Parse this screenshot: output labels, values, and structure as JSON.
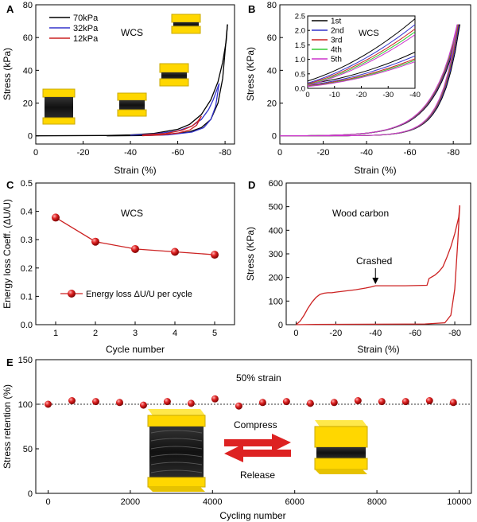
{
  "chart_data": [
    {
      "panel": "A",
      "type": "line",
      "xlabel": "Strain (%)",
      "ylabel": "Stress (kPa)",
      "xlim": [
        0,
        -84
      ],
      "ylim": [
        -5,
        80
      ],
      "xticks": [
        0,
        -20,
        -40,
        -60,
        -80
      ],
      "xtick_labels": [
        "0",
        "-20",
        "-40",
        "-60",
        "-80"
      ],
      "yticks": [
        0,
        20,
        40,
        60,
        80
      ],
      "ytick_labels": [
        "0",
        "20",
        "40",
        "60",
        "80"
      ],
      "annotation": "WCS",
      "legend_position": "top-left",
      "legend": [
        "70kPa",
        "32kPa",
        "12kPa"
      ],
      "series": [
        {
          "name": "70kPa",
          "color": "#000000",
          "load": [
            [
              0,
              0
            ],
            [
              -30,
              0.2
            ],
            [
              -40,
              0.6
            ],
            [
              -50,
              1.5
            ],
            [
              -60,
              4
            ],
            [
              -65,
              7
            ],
            [
              -70,
              13
            ],
            [
              -74,
              22
            ],
            [
              -77,
              33
            ],
            [
              -79,
              45
            ],
            [
              -80.5,
              58
            ],
            [
              -81,
              68
            ]
          ],
          "unload": [
            [
              -81,
              68
            ],
            [
              -79,
              35
            ],
            [
              -77,
              20
            ],
            [
              -74,
              10
            ],
            [
              -70,
              5
            ],
            [
              -65,
              2.5
            ],
            [
              -55,
              0.7
            ],
            [
              -45,
              0.2
            ],
            [
              -30,
              0
            ]
          ]
        },
        {
          "name": "32kPa",
          "color": "#3333cc",
          "load": [
            [
              -40,
              0.4
            ],
            [
              -50,
              1.1
            ],
            [
              -60,
              3
            ],
            [
              -66,
              6
            ],
            [
              -70,
              10
            ],
            [
              -73,
              16
            ],
            [
              -75,
              22
            ],
            [
              -76.5,
              28
            ],
            [
              -77.5,
              32
            ]
          ],
          "unload": [
            [
              -77.5,
              32
            ],
            [
              -76,
              18
            ],
            [
              -74,
              10
            ],
            [
              -71,
              5
            ],
            [
              -66,
              2.3
            ],
            [
              -56,
              0.6
            ],
            [
              -45,
              0.1
            ]
          ]
        },
        {
          "name": "12kPa",
          "color": "#cc2222",
          "load": [
            [
              -45,
              0.5
            ],
            [
              -55,
              1.4
            ],
            [
              -62,
              3.5
            ],
            [
              -66,
              6
            ],
            [
              -68.5,
              9
            ],
            [
              -70,
              12
            ]
          ],
          "unload": [
            [
              -70,
              12
            ],
            [
              -68,
              6.5
            ],
            [
              -65,
              3.5
            ],
            [
              -60,
              1.7
            ],
            [
              -52,
              0.5
            ],
            [
              -45,
              0.1
            ]
          ]
        }
      ]
    },
    {
      "panel": "B",
      "type": "line",
      "xlabel": "Strain (%)",
      "ylabel": "Stress (KPa)",
      "xlim": [
        0,
        -88
      ],
      "ylim": [
        -5,
        80
      ],
      "xticks": [
        0,
        -20,
        -40,
        -60,
        -80
      ],
      "xtick_labels": [
        "0",
        "-20",
        "-40",
        "-60",
        "-80"
      ],
      "yticks": [
        0,
        20,
        40,
        60,
        80
      ],
      "ytick_labels": [
        "0",
        "20",
        "40",
        "60",
        "80"
      ],
      "series_names": [
        "1st",
        "2nd",
        "3rd",
        "4th",
        "5th"
      ],
      "series_colors": [
        "#000000",
        "#3333cc",
        "#cc2222",
        "#33cc33",
        "#cc33cc"
      ],
      "peak_strain": [
        -83,
        -82.6,
        -82.3,
        -82,
        -81.8
      ],
      "inset": {
        "annotation": "WCS",
        "xlim": [
          0,
          -40
        ],
        "ylim": [
          0,
          2.5
        ],
        "xticks": [
          0,
          -10,
          -20,
          -30,
          -40
        ],
        "xtick_labels": [
          "0",
          "-10",
          "-20",
          "-30",
          "-40"
        ],
        "yticks": [
          0.0,
          0.5,
          1.0,
          1.5,
          2.0,
          2.5
        ],
        "ytick_labels": [
          "0.0",
          "0.5",
          "1.0",
          "1.5",
          "2.0",
          "2.5"
        ],
        "legend": [
          "1st",
          "2nd",
          "3rd",
          "4th",
          "5th"
        ],
        "load_end": [
          2.4,
          2.2,
          2.05,
          1.95,
          1.85
        ],
        "unload_end": [
          1.25,
          1.12,
          1.02,
          0.97,
          0.92
        ],
        "start": [
          0.25,
          0.18,
          0.15,
          0.12,
          0.1
        ]
      }
    },
    {
      "panel": "C",
      "type": "line",
      "xlabel": "Cycle number",
      "ylabel": "Energy loss Coeff. (ΔU/U)",
      "xlim": [
        0.5,
        5.5
      ],
      "ylim": [
        0.0,
        0.5
      ],
      "xticks": [
        1,
        2,
        3,
        4,
        5
      ],
      "xtick_labels": [
        "1",
        "2",
        "3",
        "4",
        "5"
      ],
      "yticks": [
        0.0,
        0.1,
        0.2,
        0.3,
        0.4,
        0.5
      ],
      "ytick_labels": [
        "0.0",
        "0.1",
        "0.2",
        "0.3",
        "0.4",
        "0.5"
      ],
      "annotation": "WCS",
      "legend_position": "lower-right",
      "legend": [
        "Energy loss ΔU/U per cycle"
      ],
      "x": [
        1,
        2,
        3,
        4,
        5
      ],
      "values": [
        0.378,
        0.293,
        0.267,
        0.257,
        0.247
      ],
      "color": "#cc2222"
    },
    {
      "panel": "D",
      "type": "line",
      "xlabel": "Strain (%)",
      "ylabel": "Stress (KPa)",
      "xlim": [
        5,
        -88
      ],
      "ylim": [
        0,
        600
      ],
      "xticks": [
        0,
        -20,
        -40,
        -60,
        -80
      ],
      "xtick_labels": [
        "0",
        "-20",
        "-40",
        "-60",
        "-80"
      ],
      "yticks": [
        0,
        100,
        200,
        300,
        400,
        500,
        600
      ],
      "ytick_labels": [
        "0",
        "100",
        "200",
        "300",
        "400",
        "500",
        "600"
      ],
      "annotation": "Wood carbon",
      "arrow_label": "Crashed",
      "arrow_at": [
        -40,
        165
      ],
      "color": "#cc2222",
      "load": [
        [
          0,
          0
        ],
        [
          -2,
          15
        ],
        [
          -4,
          40
        ],
        [
          -6,
          70
        ],
        [
          -8,
          95
        ],
        [
          -10,
          115
        ],
        [
          -12,
          128
        ],
        [
          -14,
          133
        ],
        [
          -16,
          135
        ],
        [
          -18,
          135
        ],
        [
          -20,
          138
        ],
        [
          -25,
          143
        ],
        [
          -30,
          148
        ],
        [
          -35,
          155
        ],
        [
          -38,
          160
        ],
        [
          -40,
          165
        ],
        [
          -45,
          165
        ],
        [
          -55,
          165
        ],
        [
          -66,
          167
        ],
        [
          -67,
          195
        ],
        [
          -70,
          210
        ],
        [
          -72,
          225
        ],
        [
          -74,
          245
        ],
        [
          -76,
          285
        ],
        [
          -78,
          330
        ],
        [
          -80,
          385
        ],
        [
          -82,
          455
        ],
        [
          -82.5,
          505
        ]
      ],
      "unload": [
        [
          -82.5,
          505
        ],
        [
          -81.5,
          350
        ],
        [
          -80,
          150
        ],
        [
          -78,
          40
        ],
        [
          -75,
          8
        ],
        [
          -65,
          3
        ],
        [
          -40,
          2
        ],
        [
          -10,
          1
        ],
        [
          0,
          0
        ]
      ]
    },
    {
      "panel": "E",
      "type": "scatter",
      "xlabel": "Cycling number",
      "ylabel": "Stress retention (%)",
      "xlim": [
        -300,
        10300
      ],
      "ylim": [
        0,
        150
      ],
      "xticks": [
        0,
        2000,
        4000,
        6000,
        8000,
        10000
      ],
      "xtick_labels": [
        "0",
        "2000",
        "4000",
        "6000",
        "8000",
        "10000"
      ],
      "yticks": [
        0,
        50,
        100,
        150
      ],
      "ytick_labels": [
        "0",
        "50",
        "100",
        "150"
      ],
      "annotation": "50% strain",
      "reference_line": 100,
      "arrow_labels": [
        "Compress",
        "Release"
      ],
      "x": [
        0,
        580,
        1160,
        1740,
        2320,
        2900,
        3480,
        4060,
        4640,
        5220,
        5800,
        6380,
        6960,
        7540,
        8120,
        8700,
        9280,
        9860
      ],
      "values": [
        100,
        104,
        103,
        102,
        99,
        103,
        101,
        106,
        98,
        102,
        103,
        101,
        102,
        104,
        103,
        103,
        104,
        102
      ],
      "color": "#cc2222"
    }
  ]
}
